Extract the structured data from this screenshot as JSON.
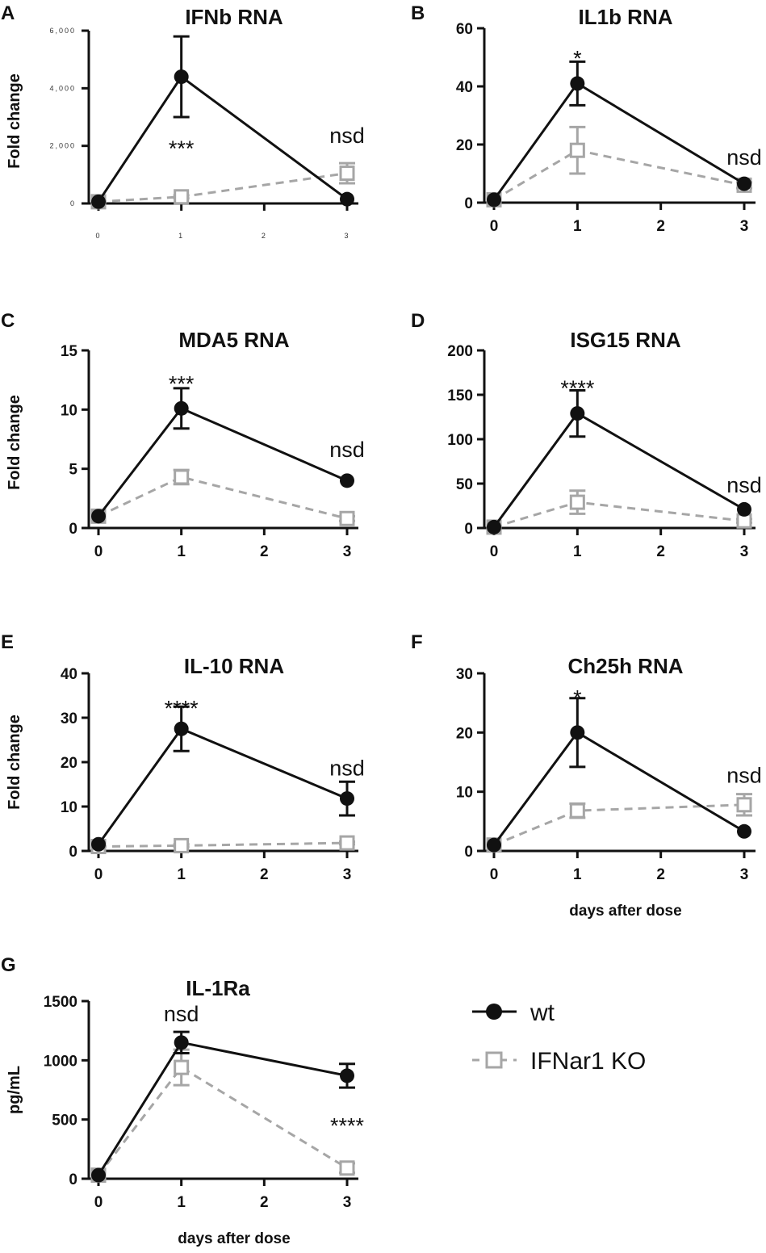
{
  "colors": {
    "wt": "#111111",
    "ko": "#a6a6a6",
    "axis": "#111111"
  },
  "legend": {
    "wt": {
      "label": "wt",
      "marker": "circle",
      "line": "solid"
    },
    "ko": {
      "label": "IFNar1 KO",
      "marker": "square",
      "line": "dashed"
    }
  },
  "chart_data": [
    {
      "id": "A",
      "panel_letter": "A",
      "type": "line",
      "title": "IFNb RNA",
      "ylabel": "Fold change",
      "xlabel": "",
      "xlim": [
        0,
        3
      ],
      "ylim": [
        0,
        6000
      ],
      "xticks": [
        0,
        1,
        2,
        3
      ],
      "xtick_labels": [
        "0",
        "1",
        "2",
        "3"
      ],
      "yticks": [
        0,
        2000,
        4000,
        6000
      ],
      "ytick_labels": [
        "0",
        "2,000",
        "4,000",
        "6,000"
      ],
      "small_ticks": true,
      "series": [
        {
          "name": "wt",
          "x": [
            0,
            1,
            3
          ],
          "y": [
            60,
            4400,
            150
          ],
          "err": [
            0,
            1400,
            0
          ]
        },
        {
          "name": "IFNar1 KO",
          "x": [
            0,
            1,
            3
          ],
          "y": [
            60,
            230,
            1050
          ],
          "err": [
            0,
            50,
            350
          ]
        }
      ],
      "annotations": [
        {
          "text": "***",
          "x": 1,
          "y": 2050
        },
        {
          "text": "nsd",
          "x": 3,
          "y": 2100
        }
      ]
    },
    {
      "id": "B",
      "panel_letter": "B",
      "type": "line",
      "title": "IL1b RNA",
      "ylabel": "",
      "xlabel": "",
      "xlim": [
        0,
        3
      ],
      "ylim": [
        0,
        60
      ],
      "xticks": [
        0,
        1,
        2,
        3
      ],
      "xtick_labels": [
        "0",
        "1",
        "2",
        "3"
      ],
      "yticks": [
        0,
        20,
        40,
        60
      ],
      "ytick_labels": [
        "0",
        "20",
        "40",
        "60"
      ],
      "series": [
        {
          "name": "wt",
          "x": [
            0,
            1,
            3
          ],
          "y": [
            1,
            41,
            6.5
          ],
          "err": [
            0,
            7.5,
            0
          ]
        },
        {
          "name": "IFNar1 KO",
          "x": [
            0,
            1,
            3
          ],
          "y": [
            1,
            18,
            6
          ],
          "err": [
            0,
            8,
            1
          ]
        }
      ],
      "annotations": [
        {
          "text": "*",
          "x": 1,
          "y": 51
        },
        {
          "text": "nsd",
          "x": 3,
          "y": 13
        }
      ]
    },
    {
      "id": "C",
      "panel_letter": "C",
      "type": "line",
      "title": "MDA5 RNA",
      "ylabel": "Fold change",
      "xlabel": "",
      "xlim": [
        0,
        3
      ],
      "ylim": [
        0,
        15
      ],
      "xticks": [
        0,
        1,
        2,
        3
      ],
      "xtick_labels": [
        "0",
        "1",
        "2",
        "3"
      ],
      "yticks": [
        0,
        5,
        10,
        15
      ],
      "ytick_labels": [
        "0",
        "5",
        "10",
        "15"
      ],
      "series": [
        {
          "name": "wt",
          "x": [
            0,
            1,
            3
          ],
          "y": [
            1,
            10.1,
            4
          ],
          "err": [
            0,
            1.7,
            0
          ]
        },
        {
          "name": "IFNar1 KO",
          "x": [
            0,
            1,
            3
          ],
          "y": [
            1,
            4.3,
            0.8
          ],
          "err": [
            0,
            0.6,
            0.2
          ]
        }
      ],
      "annotations": [
        {
          "text": "***",
          "x": 1,
          "y": 12.5
        },
        {
          "text": "nsd",
          "x": 3,
          "y": 6
        }
      ]
    },
    {
      "id": "D",
      "panel_letter": "D",
      "type": "line",
      "title": "ISG15 RNA",
      "ylabel": "",
      "xlabel": "",
      "xlim": [
        0,
        3
      ],
      "ylim": [
        0,
        200
      ],
      "xticks": [
        0,
        1,
        2,
        3
      ],
      "xtick_labels": [
        "0",
        "1",
        "2",
        "3"
      ],
      "yticks": [
        0,
        50,
        100,
        150,
        200
      ],
      "ytick_labels": [
        "0",
        "50",
        "100",
        "150",
        "200"
      ],
      "series": [
        {
          "name": "wt",
          "x": [
            0,
            1,
            3
          ],
          "y": [
            1,
            129,
            21
          ],
          "err": [
            0,
            26,
            0
          ]
        },
        {
          "name": "IFNar1 KO",
          "x": [
            0,
            1,
            3
          ],
          "y": [
            1,
            29,
            8
          ],
          "err": [
            0,
            13,
            2
          ]
        }
      ],
      "annotations": [
        {
          "text": "****",
          "x": 1,
          "y": 162
        },
        {
          "text": "nsd",
          "x": 3,
          "y": 40
        }
      ]
    },
    {
      "id": "E",
      "panel_letter": "E",
      "type": "line",
      "title": "IL-10 RNA",
      "ylabel": "Fold change",
      "xlabel": "",
      "xlim": [
        0,
        3
      ],
      "ylim": [
        0,
        40
      ],
      "xticks": [
        0,
        1,
        2,
        3
      ],
      "xtick_labels": [
        "0",
        "1",
        "2",
        "3"
      ],
      "yticks": [
        0,
        10,
        20,
        30,
        40
      ],
      "ytick_labels": [
        "0",
        "10",
        "20",
        "30",
        "40"
      ],
      "series": [
        {
          "name": "wt",
          "x": [
            0,
            1,
            3
          ],
          "y": [
            1.5,
            27.5,
            11.8
          ],
          "err": [
            0,
            5,
            3.8
          ]
        },
        {
          "name": "IFNar1 KO",
          "x": [
            0,
            1,
            3
          ],
          "y": [
            1,
            1.2,
            1.8
          ],
          "err": [
            0,
            0.3,
            0.3
          ]
        }
      ],
      "annotations": [
        {
          "text": "****",
          "x": 1,
          "y": 33
        },
        {
          "text": "nsd",
          "x": 3,
          "y": 17
        }
      ]
    },
    {
      "id": "F",
      "panel_letter": "F",
      "type": "line",
      "title": "Ch25h RNA",
      "ylabel": "",
      "xlabel": "days after dose",
      "xlim": [
        0,
        3
      ],
      "ylim": [
        0,
        30
      ],
      "xticks": [
        0,
        1,
        2,
        3
      ],
      "xtick_labels": [
        "0",
        "1",
        "2",
        "3"
      ],
      "yticks": [
        0,
        10,
        20,
        30
      ],
      "ytick_labels": [
        "0",
        "10",
        "20",
        "30"
      ],
      "series": [
        {
          "name": "wt",
          "x": [
            0,
            1,
            3
          ],
          "y": [
            1,
            20,
            3.3
          ],
          "err": [
            0,
            5.8,
            0
          ]
        },
        {
          "name": "IFNar1 KO",
          "x": [
            0,
            1,
            3
          ],
          "y": [
            1,
            6.8,
            7.8
          ],
          "err": [
            0,
            1.2,
            1.8
          ]
        }
      ],
      "annotations": [
        {
          "text": "*",
          "x": 1,
          "y": 26.5
        },
        {
          "text": "nsd",
          "x": 3,
          "y": 11.5
        }
      ]
    },
    {
      "id": "G",
      "panel_letter": "G",
      "type": "line",
      "title": "IL-1Ra",
      "ylabel": "pg/mL",
      "xlabel": "days after dose",
      "xlim": [
        0,
        3
      ],
      "ylim": [
        0,
        1500
      ],
      "xticks": [
        0,
        1,
        2,
        3
      ],
      "xtick_labels": [
        "0",
        "1",
        "2",
        "3"
      ],
      "yticks": [
        0,
        500,
        1000,
        1500
      ],
      "ytick_labels": [
        "0",
        "500",
        "1000",
        "1500"
      ],
      "series": [
        {
          "name": "wt",
          "x": [
            0,
            1,
            3
          ],
          "y": [
            30,
            1150,
            870
          ],
          "err": [
            0,
            90,
            100
          ]
        },
        {
          "name": "IFNar1 KO",
          "x": [
            0,
            1,
            3
          ],
          "y": [
            30,
            940,
            90
          ],
          "err": [
            0,
            150,
            40
          ]
        }
      ],
      "annotations": [
        {
          "text": "nsd",
          "x": 1,
          "y": 1330
        },
        {
          "text": "****",
          "x": 3,
          "y": 480
        }
      ]
    }
  ]
}
